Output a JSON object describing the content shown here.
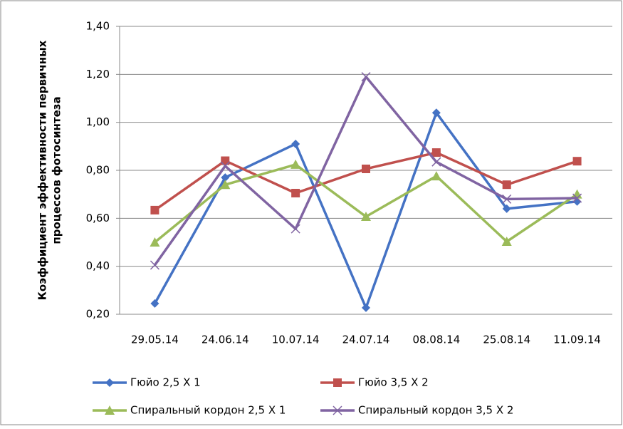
{
  "chart_data": {
    "type": "line",
    "ylabel": [
      "Коэффициент эффективности первичных",
      "процессов фотосинтеза"
    ],
    "categories": [
      "29.05.14",
      "24.06.14",
      "10.07.14",
      "24.07.14",
      "08.08.14",
      "25.08.14",
      "11.09.14"
    ],
    "series": [
      {
        "name": "Гюйо 2,5 X 1",
        "color": "#4472c4",
        "marker": "diamond",
        "values": [
          0.245,
          0.77,
          0.91,
          0.227,
          1.04,
          0.64,
          0.67
        ]
      },
      {
        "name": "Гюйо 3,5 X 2",
        "color": "#c0504d",
        "marker": "square",
        "values": [
          0.634,
          0.84,
          0.705,
          0.806,
          0.874,
          0.74,
          0.838
        ]
      },
      {
        "name": "Спиральный кордон 2,5 X 1",
        "color": "#9bbb59",
        "marker": "triangle",
        "values": [
          0.5,
          0.74,
          0.824,
          0.607,
          0.776,
          0.503,
          0.7
        ]
      },
      {
        "name": "Спиральный кордон 3,5 X 2",
        "color": "#8064a2",
        "marker": "x",
        "values": [
          0.405,
          0.818,
          0.556,
          1.19,
          0.835,
          0.68,
          0.684
        ]
      }
    ],
    "ylim": [
      0.2,
      1.4
    ],
    "yticks": [
      {
        "value": 0.2,
        "label": "0,20"
      },
      {
        "value": 0.4,
        "label": "0,40"
      },
      {
        "value": 0.6,
        "label": "0,60"
      },
      {
        "value": 0.8,
        "label": "0,80"
      },
      {
        "value": 1.0,
        "label": "1,00"
      },
      {
        "value": 1.2,
        "label": "1,20"
      },
      {
        "value": 1.4,
        "label": "1,40"
      }
    ],
    "grid": true
  }
}
